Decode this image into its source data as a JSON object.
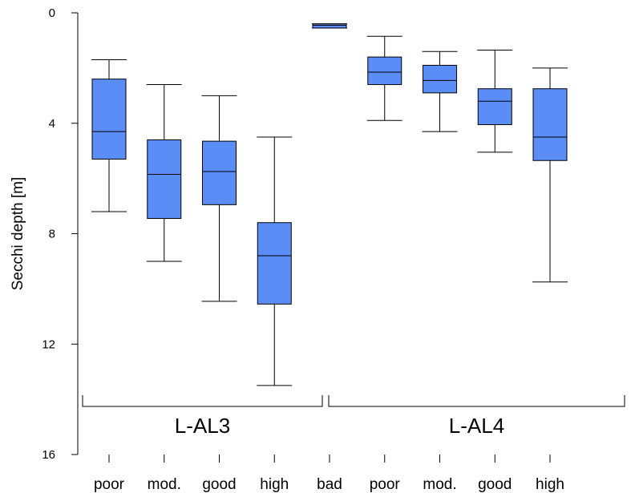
{
  "chart_data": {
    "type": "box",
    "ylabel": "Secchi depth [m]",
    "ylim": [
      0,
      16
    ],
    "y_inverted": true,
    "yticks": [
      0,
      4,
      8,
      12,
      16
    ],
    "categories": [
      "poor",
      "mod.",
      "good",
      "high",
      "bad",
      "poor",
      "mod.",
      "good",
      "high"
    ],
    "groups": [
      {
        "name": "L-AL3",
        "categories": [
          "poor",
          "mod.",
          "good",
          "high"
        ]
      },
      {
        "name": "L-AL4",
        "categories": [
          "bad",
          "poor",
          "mod.",
          "good",
          "high"
        ]
      }
    ],
    "boxes": [
      {
        "group": "L-AL3",
        "category": "poor",
        "whisker_low": 1.7,
        "q1": 2.4,
        "median": 4.3,
        "q3": 5.3,
        "whisker_high": 7.2
      },
      {
        "group": "L-AL3",
        "category": "mod.",
        "whisker_low": 2.6,
        "q1": 4.6,
        "median": 5.85,
        "q3": 7.45,
        "whisker_high": 9.0
      },
      {
        "group": "L-AL3",
        "category": "good",
        "whisker_low": 3.0,
        "q1": 4.65,
        "median": 5.75,
        "q3": 6.95,
        "whisker_high": 10.45
      },
      {
        "group": "L-AL3",
        "category": "high",
        "whisker_low": 4.5,
        "q1": 7.6,
        "median": 8.8,
        "q3": 10.55,
        "whisker_high": 13.5
      },
      {
        "group": "L-AL4",
        "category": "bad",
        "whisker_low": 0.4,
        "q1": 0.4,
        "median": 0.45,
        "q3": 0.55,
        "whisker_high": 0.55
      },
      {
        "group": "L-AL4",
        "category": "poor",
        "whisker_low": 0.85,
        "q1": 1.6,
        "median": 2.15,
        "q3": 2.6,
        "whisker_high": 3.9
      },
      {
        "group": "L-AL4",
        "category": "mod.",
        "whisker_low": 1.4,
        "q1": 1.9,
        "median": 2.45,
        "q3": 2.9,
        "whisker_high": 4.3
      },
      {
        "group": "L-AL4",
        "category": "good",
        "whisker_low": 1.35,
        "q1": 2.75,
        "median": 3.2,
        "q3": 4.05,
        "whisker_high": 5.05
      },
      {
        "group": "L-AL4",
        "category": "high",
        "whisker_low": 2.0,
        "q1": 2.75,
        "median": 4.5,
        "q3": 5.35,
        "whisker_high": 9.75
      }
    ],
    "colors": {
      "box_fill": "#5B8DF6",
      "box_stroke": "#000000",
      "axis": "#000000",
      "background": "#FFFFFF"
    },
    "grid": false,
    "legend": "none"
  }
}
